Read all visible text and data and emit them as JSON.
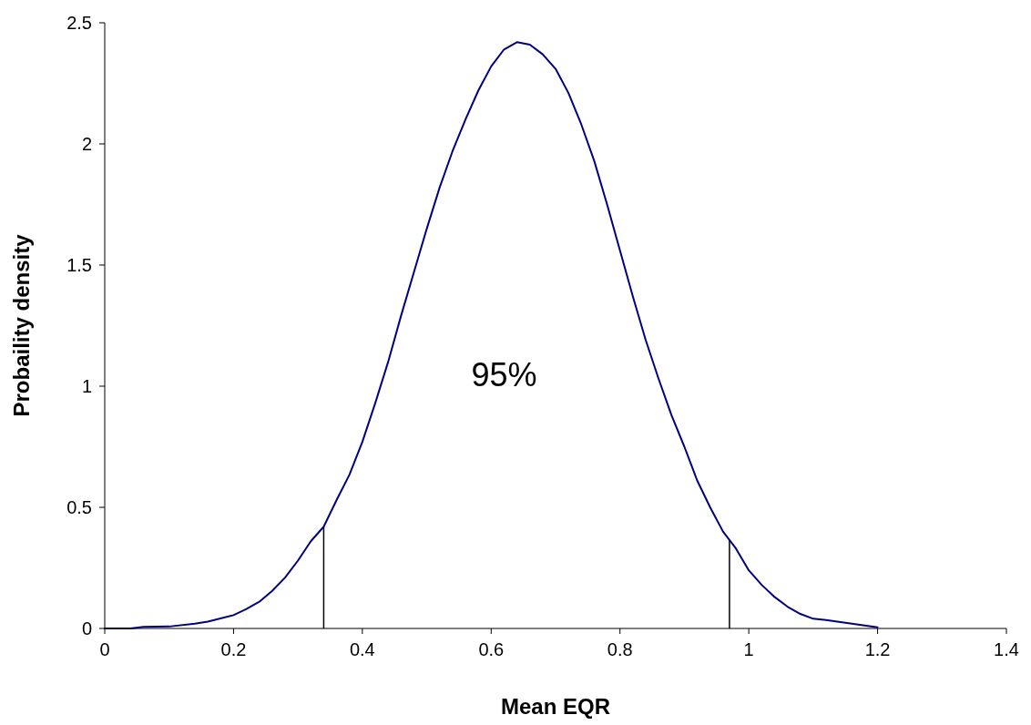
{
  "chart_data": {
    "type": "line",
    "xlabel": "Mean EQR",
    "ylabel": "Probaility density",
    "xlim": [
      0,
      1.4
    ],
    "ylim": [
      0,
      2.5
    ],
    "xticks": [
      0,
      0.2,
      0.4,
      0.6,
      0.8,
      1,
      1.2,
      1.4
    ],
    "yticks": [
      0,
      0.5,
      1,
      1.5,
      2,
      2.5
    ],
    "grid": false,
    "marker": "none",
    "line_style": "solid",
    "x": [
      0,
      0.04,
      0.06,
      0.1,
      0.14,
      0.16,
      0.2,
      0.22,
      0.24,
      0.26,
      0.28,
      0.3,
      0.32,
      0.34,
      0.36,
      0.38,
      0.4,
      0.42,
      0.44,
      0.46,
      0.48,
      0.5,
      0.52,
      0.54,
      0.56,
      0.58,
      0.6,
      0.62,
      0.64,
      0.66,
      0.68,
      0.7,
      0.72,
      0.74,
      0.76,
      0.78,
      0.8,
      0.82,
      0.84,
      0.86,
      0.88,
      0.9,
      0.92,
      0.94,
      0.96,
      0.98,
      1,
      1.02,
      1.04,
      1.06,
      1.08,
      1.1,
      1.12,
      1.16,
      1.2
    ],
    "series": [
      {
        "color": "#000080",
        "values": [
          0,
          0,
          0.007,
          0.008,
          0.02,
          0.028,
          0.055,
          0.08,
          0.11,
          0.155,
          0.21,
          0.28,
          0.36,
          0.42,
          0.53,
          0.635,
          0.77,
          0.93,
          1.1,
          1.29,
          1.47,
          1.65,
          1.82,
          1.97,
          2.1,
          2.22,
          2.32,
          2.39,
          2.42,
          2.41,
          2.37,
          2.31,
          2.21,
          2.08,
          1.93,
          1.75,
          1.56,
          1.37,
          1.19,
          1.03,
          0.88,
          0.75,
          0.61,
          0.5,
          0.4,
          0.33,
          0.24,
          0.18,
          0.13,
          0.09,
          0.06,
          0.04,
          0.035,
          0.02,
          0.005
        ]
      }
    ],
    "ref_lines": [
      {
        "axis": "x",
        "value": 0.34,
        "color": "#000000"
      },
      {
        "axis": "x",
        "value": 0.97,
        "color": "#000000"
      }
    ],
    "annotations": [
      "95%"
    ]
  }
}
